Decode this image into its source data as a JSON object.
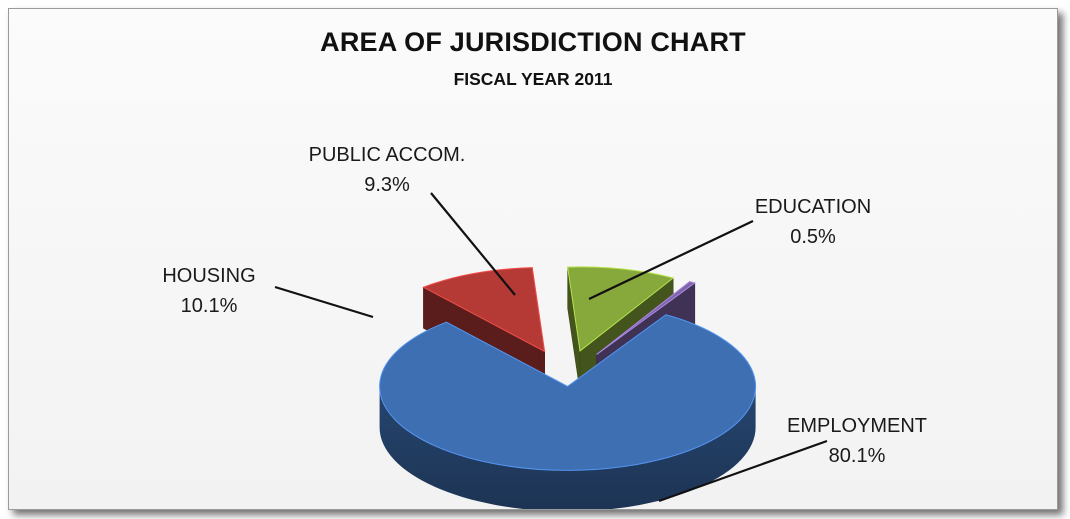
{
  "chart_data": {
    "type": "pie",
    "title": "AREA OF JURISDICTION CHART",
    "subtitle": "FISCAL YEAR 2011",
    "categories": [
      "EMPLOYMENT",
      "HOUSING",
      "PUBLIC ACCOM.",
      "EDUCATION"
    ],
    "values": [
      80.1,
      10.1,
      9.3,
      0.5
    ],
    "value_labels": [
      "80.1%",
      "10.1%",
      "9.3%",
      "0.5%"
    ],
    "colors": [
      "#3e6fb3",
      "#b53a36",
      "#87a83a",
      "#7e64a8"
    ],
    "style": "3d exploded",
    "legend": "none"
  }
}
